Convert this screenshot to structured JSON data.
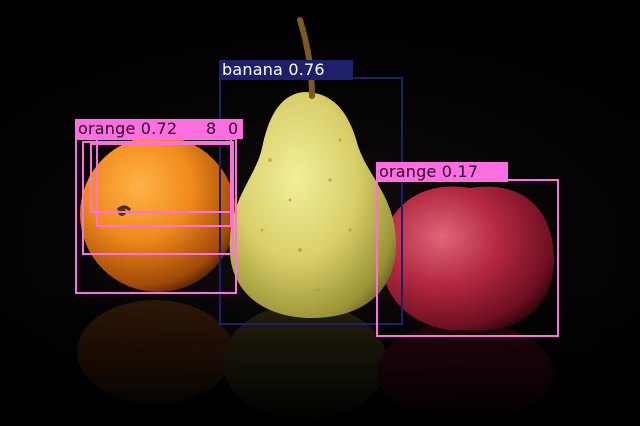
{
  "scene": {
    "objects": [
      "orange",
      "pear",
      "apple"
    ],
    "background": "#000000"
  },
  "detections": [
    {
      "label": "banana 0.76",
      "color": "#1f1f6e",
      "text_color": "#ffffff"
    },
    {
      "label": "orange 0.72",
      "color": "#ff6ee0",
      "text_color": "#2a0a2a"
    },
    {
      "label": "8",
      "color": "#ff6ee0",
      "text_color": "#2a0a2a"
    },
    {
      "label": "0",
      "color": "#ff6ee0",
      "text_color": "#2a0a2a"
    },
    {
      "label": "orange 0.17",
      "color": "#ff6ee0",
      "text_color": "#2a0a2a"
    },
    {
      "label": "",
      "color": "#ff6ee0",
      "text_color": "#2a0a2a"
    }
  ]
}
